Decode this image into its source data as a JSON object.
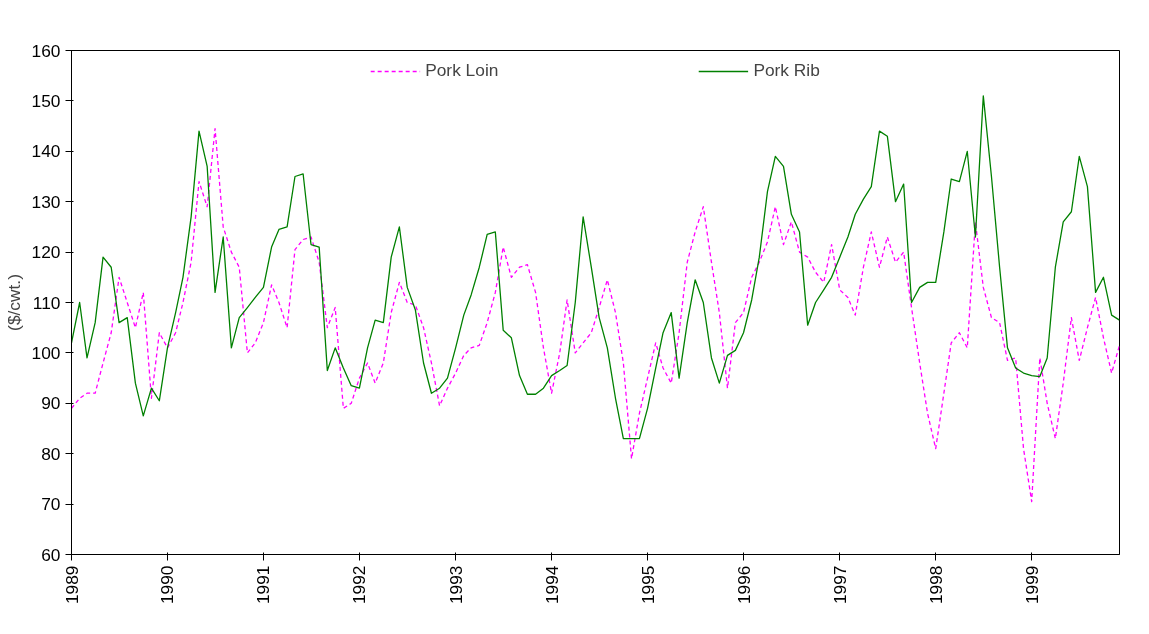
{
  "chart_data": {
    "type": "line",
    "ylabel": "($/cwt.)",
    "x": [
      "1989-01",
      "1989-02",
      "1989-03",
      "1989-04",
      "1989-05",
      "1989-06",
      "1989-07",
      "1989-08",
      "1989-09",
      "1989-10",
      "1989-11",
      "1989-12",
      "1990-01",
      "1990-02",
      "1990-03",
      "1990-04",
      "1990-05",
      "1990-06",
      "1990-07",
      "1990-08",
      "1990-09",
      "1990-10",
      "1990-11",
      "1990-12",
      "1991-01",
      "1991-02",
      "1991-03",
      "1991-04",
      "1991-05",
      "1991-06",
      "1991-07",
      "1991-08",
      "1991-09",
      "1991-10",
      "1991-11",
      "1991-12",
      "1992-01",
      "1992-02",
      "1992-03",
      "1992-04",
      "1992-05",
      "1992-06",
      "1992-07",
      "1992-08",
      "1992-09",
      "1992-10",
      "1992-11",
      "1992-12",
      "1993-01",
      "1993-02",
      "1993-03",
      "1993-04",
      "1993-05",
      "1993-06",
      "1993-07",
      "1993-08",
      "1993-09",
      "1993-10",
      "1993-11",
      "1993-12",
      "1994-01",
      "1994-02",
      "1994-03",
      "1994-04",
      "1994-05",
      "1994-06",
      "1994-07",
      "1994-08",
      "1994-09",
      "1994-10",
      "1994-11",
      "1994-12",
      "1995-01",
      "1995-02",
      "1995-03",
      "1995-04",
      "1995-05",
      "1995-06",
      "1995-07",
      "1995-08",
      "1995-09",
      "1995-10",
      "1995-11",
      "1995-12",
      "1996-01",
      "1996-02",
      "1996-03",
      "1996-04",
      "1996-05",
      "1996-06",
      "1996-07",
      "1996-08",
      "1996-09",
      "1996-10",
      "1996-11",
      "1996-12",
      "1997-01",
      "1997-02",
      "1997-03",
      "1997-04",
      "1997-05",
      "1997-06",
      "1997-07",
      "1997-08",
      "1997-09",
      "1997-10",
      "1997-11",
      "1997-12",
      "1998-01",
      "1998-02",
      "1998-03",
      "1998-04",
      "1998-05",
      "1998-06",
      "1998-07",
      "1998-08",
      "1998-09",
      "1998-10",
      "1998-11",
      "1998-12",
      "1999-01",
      "1999-02",
      "1999-03",
      "1999-04",
      "1999-05",
      "1999-06",
      "1999-07",
      "1999-08",
      "1999-09",
      "1999-10",
      "1999-11",
      "1999-12"
    ],
    "series": [
      {
        "name": "Pork Loin",
        "color": "#ff00ff",
        "line_style": "dashed",
        "values": [
          89,
          91,
          92,
          92,
          98,
          104,
          115,
          110,
          105,
          112,
          91,
          104,
          101,
          104,
          110,
          118,
          134,
          129,
          144.5,
          125,
          120,
          117,
          100,
          102,
          106,
          113.5,
          110,
          105,
          120.5,
          122.5,
          123,
          118,
          105,
          109,
          89,
          90,
          95,
          98,
          94,
          98,
          108,
          114,
          110,
          109.5,
          105,
          98,
          89.5,
          93,
          96,
          99.5,
          101,
          101.5,
          106,
          112,
          121,
          115,
          117,
          117.5,
          112,
          101,
          92,
          100,
          110.5,
          100,
          102,
          104,
          109,
          114.5,
          108,
          98,
          79,
          88,
          95,
          102,
          97,
          94,
          104,
          118,
          124,
          129,
          118,
          108,
          93,
          106,
          108,
          115,
          118,
          122,
          129,
          121.5,
          126,
          120,
          119,
          116,
          114,
          121.5,
          112.5,
          111,
          107.5,
          117,
          124,
          117,
          123,
          118,
          120,
          109,
          98,
          88,
          81,
          92,
          102,
          104,
          101,
          126,
          113,
          107,
          106,
          98.5,
          99,
          81,
          70.5,
          99,
          90,
          83,
          94,
          107,
          98.5,
          105,
          111,
          103,
          96,
          101.5
        ]
      },
      {
        "name": "Pork Rib",
        "color": "#008000",
        "line_style": "solid",
        "values": [
          102,
          110,
          99,
          106,
          119,
          117,
          106,
          107,
          94,
          87.5,
          93,
          90.5,
          101,
          108,
          115,
          127,
          144,
          137,
          112,
          123,
          101,
          107,
          109,
          111,
          113,
          121,
          124.5,
          125,
          135,
          135.5,
          121.5,
          121,
          96.5,
          101,
          97,
          93.5,
          93,
          101,
          106.5,
          106,
          119,
          125,
          113,
          108.5,
          98,
          92,
          93,
          95,
          101,
          107.5,
          111.5,
          117,
          123.5,
          124,
          104.5,
          103,
          95.5,
          91.8,
          91.8,
          93,
          95.5,
          96.5,
          97.5,
          110,
          127,
          117,
          107,
          101,
          91,
          83,
          83,
          83,
          89,
          97,
          104,
          108,
          95,
          106,
          114.5,
          110,
          99,
          94,
          99.5,
          100.5,
          104,
          110.5,
          119,
          132,
          139,
          137,
          127.5,
          124,
          105.5,
          110,
          112.5,
          115,
          119,
          123,
          127.5,
          130.5,
          133,
          144,
          143,
          130,
          133.5,
          110,
          113,
          114,
          114,
          124,
          134.5,
          134,
          140,
          123,
          151,
          135,
          117,
          101,
          97,
          96,
          95.5,
          95.3,
          99,
          117,
          126,
          128,
          139,
          133,
          112,
          115,
          107.5,
          106.5
        ]
      }
    ],
    "xlim": [
      "1989-01",
      "1999-12"
    ],
    "xticks": [
      "1989",
      "1990",
      "1991",
      "1992",
      "1993",
      "1994",
      "1995",
      "1996",
      "1997",
      "1998",
      "1999"
    ],
    "ylim": [
      60,
      160
    ],
    "yticks": [
      60,
      70,
      80,
      90,
      100,
      110,
      120,
      130,
      140,
      150,
      160
    ],
    "legend": "top",
    "grid": false
  }
}
